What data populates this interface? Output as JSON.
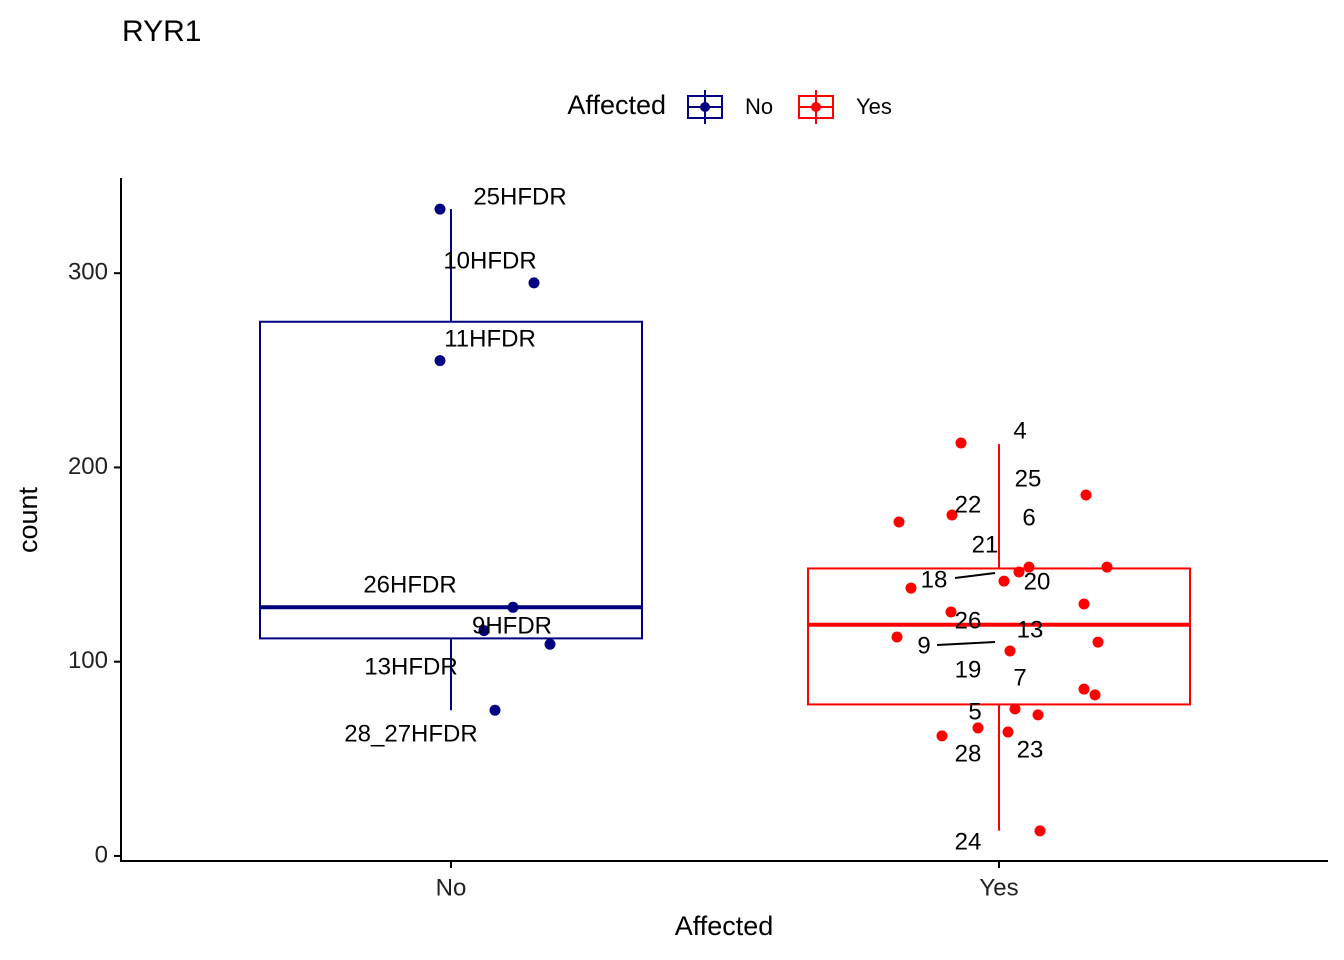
{
  "chart_data": {
    "type": "box",
    "title": "RYR1",
    "x_label": "Affected",
    "y_label": "count",
    "legend_title": "Affected",
    "legend_position": "top",
    "categories": [
      "No",
      "Yes"
    ],
    "ylim": [
      -2.6,
      349
    ],
    "yticks": [
      0,
      100,
      200,
      300
    ],
    "series": [
      {
        "name": "No",
        "color": "#000080",
        "whisker_low": 75,
        "q1": 112,
        "median": 128,
        "q3": 275,
        "whisker_high": 333,
        "points": [
          {
            "label": "25HFDR",
            "value": 333
          },
          {
            "label": "10HFDR",
            "value": 295
          },
          {
            "label": "11HFDR",
            "value": 255
          },
          {
            "label": "26HFDR",
            "value": 128
          },
          {
            "label": "9HFDR",
            "value": 116
          },
          {
            "label": "13HFDR",
            "value": 109
          },
          {
            "label": "28_27HFDR",
            "value": 75
          }
        ]
      },
      {
        "name": "Yes",
        "color": "#ff0000",
        "whisker_low": 13,
        "q1": 78,
        "median": 119,
        "q3": 148,
        "whisker_high": 212,
        "points": [
          {
            "label": "4",
            "value": 212.6
          },
          {
            "label": "25",
            "value": 185.8
          },
          {
            "label": "22",
            "value": 175.5
          },
          {
            "label": "6",
            "value": 171.9
          },
          {
            "label": "21",
            "value": 148.7
          },
          {
            "value": 148.7
          },
          {
            "label": "20",
            "value": 146.2
          },
          {
            "label": "18",
            "value": 141.5
          },
          {
            "value": 137.9
          },
          {
            "value": 129.7
          },
          {
            "label": "26",
            "value": 125.6
          },
          {
            "value": 112.7
          },
          {
            "label": "13",
            "value": 110.1
          },
          {
            "label": "9",
            "value": 105.5
          },
          {
            "value": 85.9
          },
          {
            "value": 82.9
          },
          {
            "label": "7",
            "value": 75.7
          },
          {
            "label": "23",
            "value": 72.6
          },
          {
            "label": "19",
            "value": 65.9
          },
          {
            "label": "5",
            "value": 63.8
          },
          {
            "label": "28",
            "value": 61.8
          },
          {
            "label": "24",
            "value": 12.9
          }
        ]
      }
    ]
  }
}
